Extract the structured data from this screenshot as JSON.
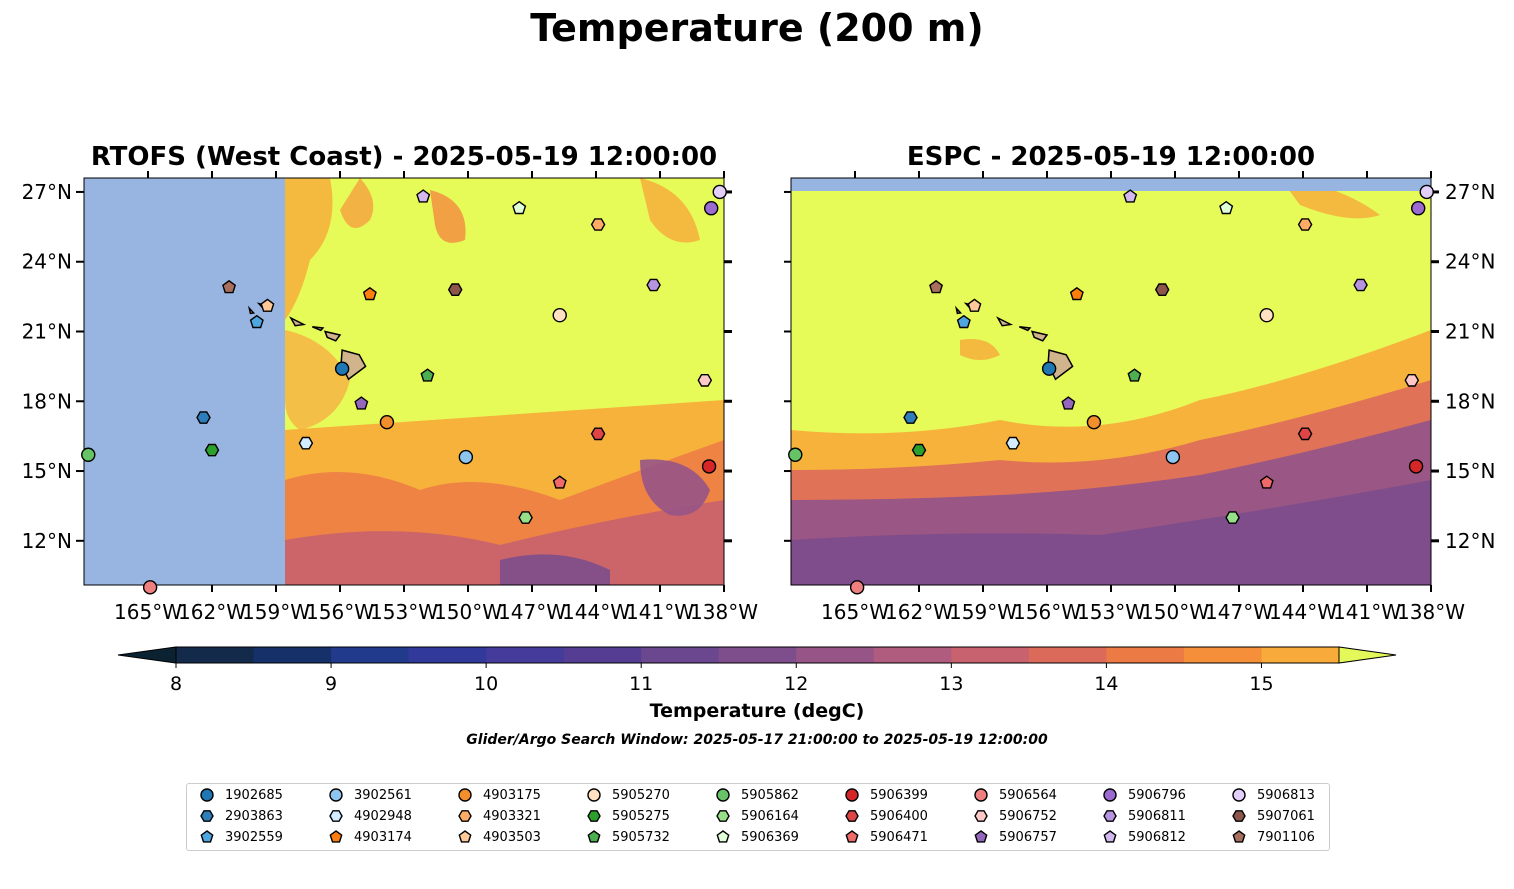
{
  "figure_title": "Temperature (200 m)",
  "panels": [
    {
      "id": "rtofs",
      "title": "RTOFS (West Coast) - 2025-05-19 12:00:00"
    },
    {
      "id": "espc",
      "title": "ESPC - 2025-05-19 12:00:00"
    }
  ],
  "map": {
    "lon_labels": [
      "165°W",
      "162°W",
      "159°W",
      "156°W",
      "153°W",
      "150°W",
      "147°W",
      "144°W",
      "141°W",
      "138°W"
    ],
    "lon_values": [
      -165,
      -162,
      -159,
      -156,
      -153,
      -150,
      -147,
      -144,
      -141,
      -138
    ],
    "lat_labels": [
      "27°N",
      "24°N",
      "21°N",
      "18°N",
      "15°N",
      "12°N"
    ],
    "lat_values": [
      27,
      24,
      21,
      18,
      15,
      12
    ],
    "lon_range": [
      -168,
      -138
    ],
    "lat_range": [
      10.1,
      27.6
    ]
  },
  "colorbar": {
    "label": "Temperature (degC)",
    "tick_labels": [
      "8",
      "9",
      "10",
      "11",
      "12",
      "13",
      "14",
      "15"
    ],
    "tick_values": [
      8,
      9,
      10,
      11,
      12,
      13,
      14,
      15
    ],
    "range": [
      7.6,
      15.9
    ],
    "levels": [
      8,
      8.5,
      9,
      9.5,
      10,
      10.5,
      11,
      11.5,
      12,
      12.5,
      13,
      13.5,
      14,
      14.5,
      15,
      15.5
    ],
    "colors": [
      "#0b2233",
      "#132a4a",
      "#16306a",
      "#213a8c",
      "#31399a",
      "#443b9a",
      "#553d94",
      "#6a478f",
      "#7d4d8c",
      "#965487",
      "#b05c7e",
      "#c8626e",
      "#dc6a5a",
      "#ec7a45",
      "#f58f3a",
      "#f8aa3a",
      "#f6c843",
      "#f2e250",
      "#e5f85a"
    ],
    "extend": "both"
  },
  "search_window": "Glider/Argo Search Window: 2025-05-17 21:00:00 to 2025-05-19 12:00:00",
  "colors": {
    "land": "#d2b48c",
    "nodata": "#97b5e0",
    "yellow": "#e6fa58"
  },
  "floats": [
    {
      "id": "1902685",
      "marker": "circle",
      "color": "#1f77b4",
      "lon": -155.9,
      "lat": 19.4
    },
    {
      "id": "2903863",
      "marker": "hexagon",
      "color": "#2d7ebb",
      "lon": -162.4,
      "lat": 17.3
    },
    {
      "id": "3902559",
      "marker": "pentagon",
      "color": "#4da6e0",
      "lon": -159.9,
      "lat": 21.4
    },
    {
      "id": "3902561",
      "marker": "circle",
      "color": "#8ec5f0",
      "lon": -150.1,
      "lat": 15.6
    },
    {
      "id": "4902948",
      "marker": "hexagon",
      "color": "#d4ecff",
      "lon": -157.6,
      "lat": 16.2
    },
    {
      "id": "4903174",
      "marker": "pentagon",
      "color": "#ff7f0e",
      "lon": -154.6,
      "lat": 22.6
    },
    {
      "id": "4903175",
      "marker": "circle",
      "color": "#f28e2b",
      "lon": -153.8,
      "lat": 17.1
    },
    {
      "id": "4903321",
      "marker": "hexagon",
      "color": "#ffad66",
      "lon": -143.9,
      "lat": 25.6
    },
    {
      "id": "4903503",
      "marker": "pentagon",
      "color": "#ffc999",
      "lon": -159.4,
      "lat": 22.1
    },
    {
      "id": "5905270",
      "marker": "circle",
      "color": "#ffe0c2",
      "lon": -145.7,
      "lat": 21.7
    },
    {
      "id": "5905275",
      "marker": "hexagon",
      "color": "#2ca02c",
      "lon": -162.0,
      "lat": 15.9
    },
    {
      "id": "5905732",
      "marker": "pentagon",
      "color": "#4caf50",
      "lon": -151.9,
      "lat": 19.1
    },
    {
      "id": "5905862",
      "marker": "circle",
      "color": "#66c466",
      "lon": -167.8,
      "lat": 15.7
    },
    {
      "id": "5906164",
      "marker": "hexagon",
      "color": "#98df8a",
      "lon": -147.3,
      "lat": 13.0
    },
    {
      "id": "5906369",
      "marker": "pentagon",
      "color": "#e0ffd9",
      "lon": -147.6,
      "lat": 26.3
    },
    {
      "id": "5906399",
      "marker": "circle",
      "color": "#d62728",
      "lon": -138.7,
      "lat": 15.2
    },
    {
      "id": "5906400",
      "marker": "hexagon",
      "color": "#e04545",
      "lon": -143.9,
      "lat": 16.6
    },
    {
      "id": "5906471",
      "marker": "pentagon",
      "color": "#f06a6a",
      "lon": -145.7,
      "lat": 14.5
    },
    {
      "id": "5906564",
      "marker": "circle",
      "color": "#f08080",
      "lon": -164.9,
      "lat": 10.0
    },
    {
      "id": "5906752",
      "marker": "hexagon",
      "color": "#ffc8c8",
      "lon": -138.9,
      "lat": 18.9
    },
    {
      "id": "5906757",
      "marker": "pentagon",
      "color": "#9467bd",
      "lon": -155.0,
      "lat": 17.9
    },
    {
      "id": "5906796",
      "marker": "circle",
      "color": "#9c6ad0",
      "lon": -138.6,
      "lat": 26.3
    },
    {
      "id": "5906811",
      "marker": "hexagon",
      "color": "#b794e0",
      "lon": -141.3,
      "lat": 23.0
    },
    {
      "id": "5906812",
      "marker": "pentagon",
      "color": "#d3b8f0",
      "lon": -152.1,
      "lat": 26.8
    },
    {
      "id": "5906813",
      "marker": "circle",
      "color": "#e3d0fa",
      "lon": -138.2,
      "lat": 27.0
    },
    {
      "id": "5907061",
      "marker": "hexagon",
      "color": "#8c564b",
      "lon": -150.6,
      "lat": 22.8
    },
    {
      "id": "7901106",
      "marker": "pentagon",
      "color": "#a86f5f",
      "lon": -161.2,
      "lat": 22.9
    }
  ]
}
